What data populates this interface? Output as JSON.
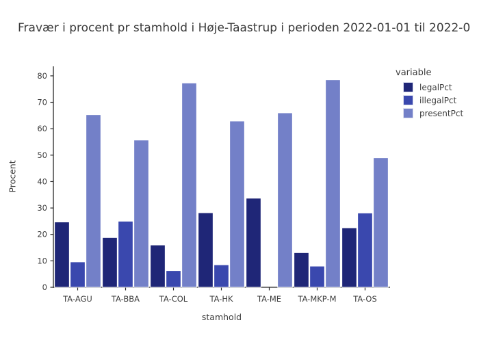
{
  "chart_data": {
    "type": "bar",
    "title": "Fravær i procent pr stamhold i Høje-Taastrup i perioden 2022-01-01 til 2022-0",
    "xlabel": "stamhold",
    "ylabel": "Procent",
    "legend_title": "variable",
    "legend_position": "upper right outside",
    "grid": false,
    "categories": [
      "TA-AGU",
      "TA-BBA",
      "TA-COL",
      "TA-HK",
      "TA-ME",
      "TA-MKP-M",
      "TA-OS"
    ],
    "series": [
      {
        "name": "legalPct",
        "color": "#1f2677",
        "values": [
          24.7,
          18.8,
          16.0,
          28.2,
          33.7,
          13.1,
          22.5
        ]
      },
      {
        "name": "illegalPct",
        "color": "#3a48ae",
        "values": [
          9.6,
          25.0,
          6.3,
          8.5,
          0,
          8.0,
          28.1
        ]
      },
      {
        "name": "presentPct",
        "color": "#7380c8",
        "values": [
          65.3,
          55.7,
          77.3,
          62.9,
          66.0,
          78.5,
          49.0
        ]
      }
    ],
    "ylim": [
      0,
      83.6
    ],
    "yticks": [
      0,
      10,
      20,
      30,
      40,
      50,
      60,
      70,
      80
    ]
  },
  "colors": {
    "text": "#3d3d3d",
    "spine": "#262626",
    "bar_edge": "#ffffff",
    "background": "#ffffff"
  }
}
